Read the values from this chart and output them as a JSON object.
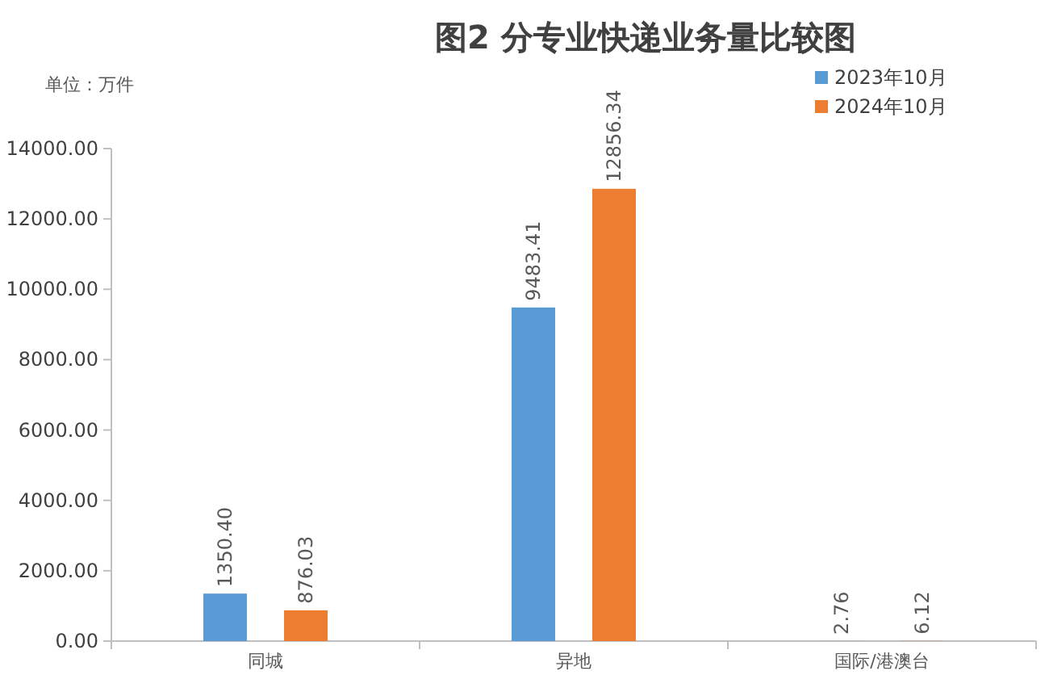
{
  "chart_data": {
    "type": "bar",
    "title": "图2 分专业快递业务量比较图",
    "annotations": [
      "单位：万件"
    ],
    "categories": [
      "同城",
      "异地",
      "国际/港澳台"
    ],
    "series": [
      {
        "name": "2023年10月",
        "color": "#5b9bd5",
        "values": [
          1350.4,
          9483.41,
          2.76
        ],
        "value_labels": [
          "1350.40",
          "9483.41",
          "2.76"
        ]
      },
      {
        "name": "2024年10月",
        "color": "#ed7d31",
        "values": [
          876.03,
          12856.34,
          6.12
        ],
        "value_labels": [
          "876.03",
          "12856.34",
          "6.12"
        ]
      }
    ],
    "ylim": [
      0,
      14000
    ],
    "yticks": [
      {
        "value": 0,
        "label": "0.00"
      },
      {
        "value": 2000,
        "label": "2000.00"
      },
      {
        "value": 4000,
        "label": "4000.00"
      },
      {
        "value": 6000,
        "label": "6000.00"
      },
      {
        "value": 8000,
        "label": "8000.00"
      },
      {
        "value": 10000,
        "label": "10000.00"
      },
      {
        "value": 12000,
        "label": "12000.00"
      },
      {
        "value": 14000,
        "label": "14000.00"
      }
    ],
    "grid": false,
    "legend": "top right"
  }
}
